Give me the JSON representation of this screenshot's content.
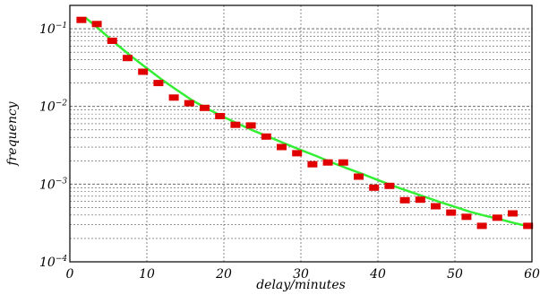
{
  "chart_data": {
    "type": "scatter",
    "xlabel": "delay/minutes",
    "ylabel": "frequency",
    "x_ticks": [
      "0",
      "10",
      "20",
      "30",
      "40",
      "50",
      "60"
    ],
    "y_ticks": [
      {
        "base": "10",
        "exp": "−1"
      },
      {
        "base": "10",
        "exp": "−2"
      },
      {
        "base": "10",
        "exp": "−3"
      },
      {
        "base": "10",
        "exp": "−4"
      }
    ],
    "xlim": [
      0,
      60
    ],
    "ylim": [
      0.0001,
      0.2
    ],
    "yscale": "log",
    "grid": true,
    "colors": {
      "points": "#e00000",
      "fit": "#33ee33",
      "grid": "#555555"
    },
    "series": [
      {
        "type": "scatter",
        "x": [
          1.5,
          3.5,
          5.5,
          7.5,
          9.5,
          11.5,
          13.5,
          15.5,
          17.5,
          19.5,
          21.5,
          23.5,
          25.5,
          27.5,
          29.5,
          31.5,
          33.5,
          35.5,
          37.5,
          39.5,
          41.5,
          43.5,
          45.5,
          47.5,
          49.5,
          51.5,
          53.5,
          55.5,
          57.5,
          59.5
        ],
        "y": [
          0.13,
          0.115,
          0.07,
          0.042,
          0.028,
          0.02,
          0.013,
          0.011,
          0.0096,
          0.0075,
          0.0058,
          0.0057,
          0.0041,
          0.003,
          0.0025,
          0.0018,
          0.0019,
          0.0019,
          0.00125,
          0.0009,
          0.00095,
          0.00062,
          0.00063,
          0.00052,
          0.00043,
          0.00038,
          0.00029,
          0.00037,
          0.00042,
          0.00029
        ]
      },
      {
        "type": "line",
        "x": [
          2,
          4,
          6,
          8,
          10,
          12,
          14,
          16,
          18,
          20,
          22,
          24,
          26,
          28,
          30,
          32,
          34,
          36,
          38,
          40,
          42,
          44,
          46,
          48,
          50,
          52,
          54,
          56,
          58,
          60
        ],
        "y": [
          0.14,
          0.095,
          0.064,
          0.044,
          0.031,
          0.022,
          0.016,
          0.0118,
          0.0092,
          0.0073,
          0.0059,
          0.0048,
          0.004,
          0.0033,
          0.00275,
          0.0023,
          0.0019,
          0.0016,
          0.00135,
          0.00113,
          0.00095,
          0.00081,
          0.00069,
          0.00059,
          0.00051,
          0.00044,
          0.00039,
          0.00035,
          0.00031,
          0.00028
        ]
      }
    ]
  }
}
